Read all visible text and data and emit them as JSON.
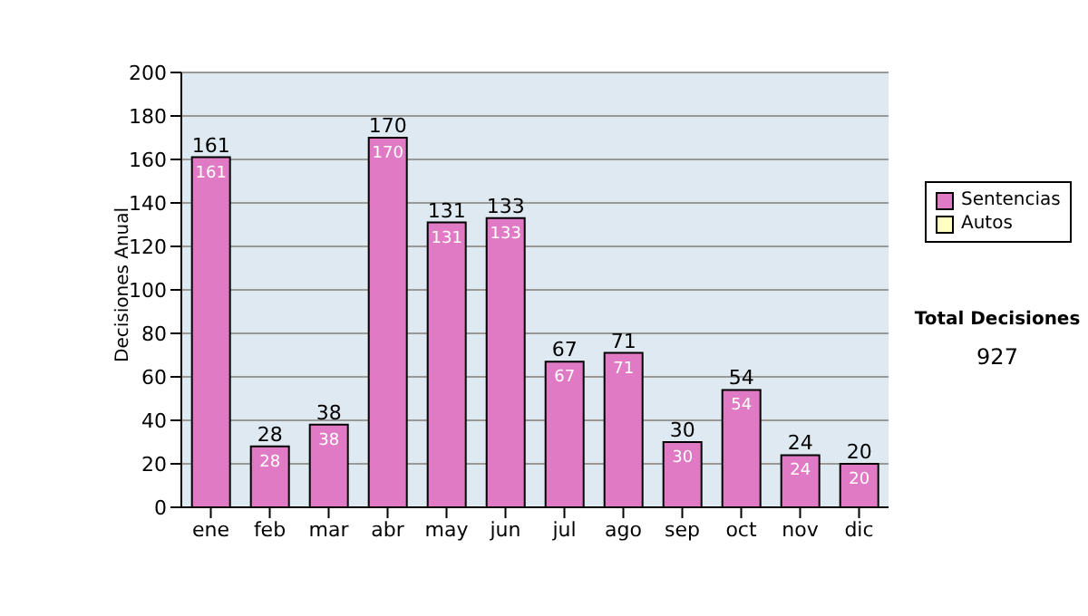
{
  "chart_data": {
    "type": "bar",
    "ylabel": "Decisiones Anual",
    "categories": [
      "ene",
      "feb",
      "mar",
      "abr",
      "may",
      "jun",
      "jul",
      "ago",
      "sep",
      "oct",
      "nov",
      "dic"
    ],
    "series": [
      {
        "name": "Sentencias",
        "color": "#e07ac4",
        "values": [
          161,
          28,
          38,
          170,
          131,
          133,
          67,
          71,
          30,
          54,
          24,
          20
        ],
        "value_labels": [
          "161",
          "28",
          "38",
          "170",
          "131",
          "133",
          "67",
          "71",
          "30",
          "54",
          "24",
          "20"
        ]
      },
      {
        "name": "Autos",
        "color": "#ffffc0",
        "values": [
          0,
          0,
          0,
          0,
          0,
          0,
          0,
          0,
          0,
          0,
          0,
          0
        ]
      }
    ],
    "stacked": true,
    "ylim": [
      0,
      200
    ],
    "yticks": [
      0,
      20,
      40,
      60,
      80,
      100,
      120,
      140,
      160,
      180,
      200
    ],
    "grid": "y",
    "legend": "right",
    "totals": [
      "161",
      "28",
      "38",
      "170",
      "131",
      "133",
      "67",
      "71",
      "30",
      "54",
      "24",
      "20"
    ],
    "annotations": [
      "Total Decisiones",
      "927"
    ]
  }
}
